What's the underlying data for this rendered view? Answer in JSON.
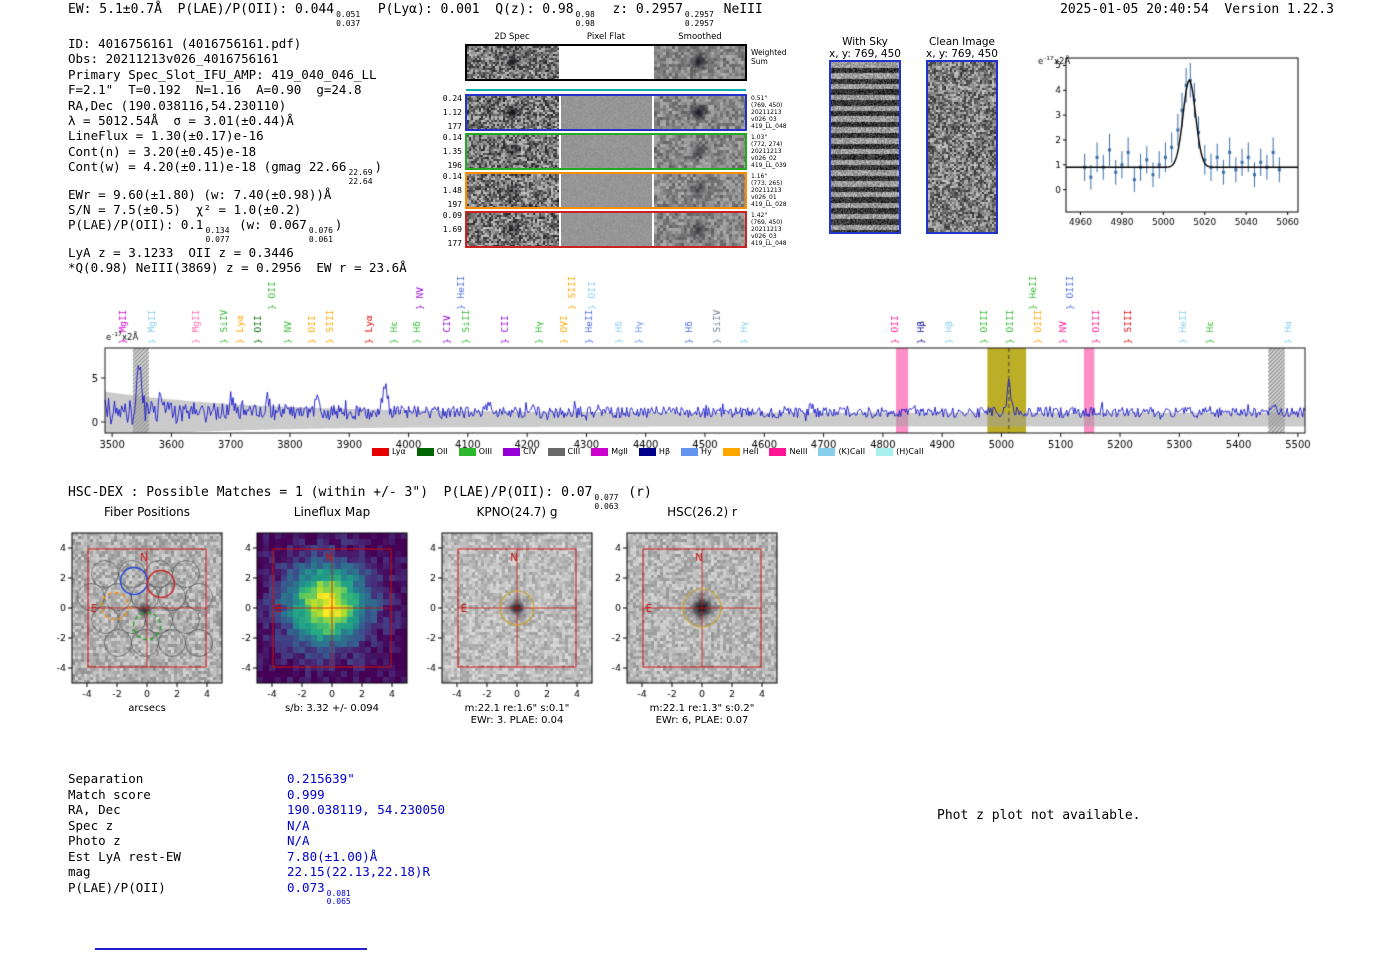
{
  "meta": {
    "generated": "2025-01-05 20:40:54  Version 1.22.3"
  },
  "header": {
    "segments": [
      {
        "t": "EW: 5.1±0.7Å  P(LAE)/P(OII): 0.044"
      },
      {
        "f": [
          "0.051",
          "0.037"
        ]
      },
      {
        "t": "  P(Lyα): 0.001  Q(z): 0.98"
      },
      {
        "f": [
          "0.98",
          "0.98"
        ]
      },
      {
        "t": "  z: 0.2957"
      },
      {
        "f": [
          "0.2957",
          "0.2957"
        ]
      },
      {
        "t": " NeIII"
      }
    ]
  },
  "info_lines": [
    [
      {
        "t": "ID: 4016756161 (4016756161.pdf)"
      }
    ],
    [
      {
        "t": "Obs: 20211213v026_4016756161"
      }
    ],
    [
      {
        "t": "Primary Spec_Slot_IFU_AMP: 419_040_046_LL"
      }
    ],
    [
      {
        "t": "F=2.1\"  T=0.192  N=1.16  A=0.90  g=24.8"
      }
    ],
    [
      {
        "t": "RA,Dec (190.038116,54.230110)"
      }
    ],
    [
      {
        "t": "λ = 5012.54Å  σ = 3.01(±0.44)Å"
      }
    ],
    [
      {
        "t": "LineFlux = 1.30(±0.17)e-16"
      }
    ],
    [
      {
        "t": "Cont(n) = 3.20(±0.45)e-18"
      }
    ],
    [
      {
        "t": "Cont(w) = 4.20(±0.11)e-18 (gmag 22.66"
      },
      {
        "f": [
          "22.69",
          "22.64"
        ]
      },
      {
        "t": ")"
      }
    ],
    [
      {
        "t": "EWr = 9.60(±1.80) (w: 7.40(±0.98))Å"
      }
    ],
    [
      {
        "t": "S/N = 7.5(±0.5)  χ² = 1.0(±0.2)"
      }
    ],
    [
      {
        "t": "P(LAE)/P(OII): 0.1"
      },
      {
        "f": [
          "0.134",
          "0.077"
        ]
      },
      {
        "t": " (w: 0.067"
      },
      {
        "f": [
          "0.076",
          "0.061"
        ]
      },
      {
        "t": ")"
      }
    ],
    [
      {
        "t": "LyA z = 3.1233  OII z = 0.3446"
      }
    ],
    [
      {
        "t": "*Q(0.98) NeIII(3869) z = 0.2956  EW r = 23.6Å"
      }
    ]
  ],
  "spec2d": {
    "col_headers": [
      "2D Spec",
      "Pixel Flat",
      "Smoothed"
    ],
    "weighted_sum": [
      "Weighted",
      "Sum"
    ],
    "rows": [
      {
        "border": "#000000",
        "left": [],
        "right": []
      },
      {
        "border": "#2233cc",
        "left": [
          "0.24",
          "1.12",
          "177"
        ],
        "right": [
          "0.51\"",
          "(769, 450)",
          "20211213",
          "v026_03",
          "419_LL_048"
        ]
      },
      {
        "border": "#22aa22",
        "left": [
          "0.14",
          "1.35",
          "196"
        ],
        "right": [
          "1.03\"",
          "(772, 274)",
          "20211213",
          "v026_02",
          "419_LL_039"
        ]
      },
      {
        "border": "#ff8c00",
        "left": [
          "0.14",
          "1.48",
          "197"
        ],
        "right": [
          "1.16\"",
          "(773, 265)",
          "20211213",
          "v026_01",
          "419_LL_028"
        ]
      },
      {
        "border": "#cc2222",
        "left": [
          "0.09",
          "1.69",
          "177"
        ],
        "right": [
          "1.42\"",
          "(769, 450)",
          "20211213",
          "v026_03",
          "419_LL_048"
        ]
      }
    ]
  },
  "sky_panels": {
    "with_sky": {
      "title": "With Sky",
      "subtitle": "x, y: 769, 450"
    },
    "clean": {
      "title": "Clean Image",
      "subtitle": "x, y: 769, 450"
    }
  },
  "hsc_dex": {
    "segments": [
      {
        "t": "HSC-DEX : Possible Matches = 1 (within +/- 3\")  P(LAE)/P(OII): 0.07"
      },
      {
        "f": [
          "0.077",
          "0.063"
        ]
      },
      {
        "t": " (r)"
      }
    ]
  },
  "panels": {
    "ticks": [
      -4,
      -2,
      0,
      2,
      4
    ],
    "compass": {
      "north": "N",
      "east": "E"
    },
    "items": [
      {
        "key": "fiber",
        "title": "Fiber Positions",
        "caption1": "arcsecs",
        "caption2": ""
      },
      {
        "key": "lineflux",
        "title": "Lineflux Map",
        "caption1": "s/b: 3.32 +/- 0.094",
        "caption2": ""
      },
      {
        "key": "kpno",
        "title": "KPNO(24.7) g",
        "caption1": "m:22.1 re:1.6\" s:0.1\"",
        "caption2": "EWr: 3. PLAE: 0.04"
      },
      {
        "key": "hsc",
        "title": "HSC(26.2) r",
        "caption1": "m:22.1 re:1.3\" s:0.2\"",
        "caption2": "EWr: 6, PLAE: 0.07"
      }
    ]
  },
  "match_table": {
    "rows": [
      {
        "label": "Separation",
        "value": [
          {
            "t": "0.215639\""
          }
        ]
      },
      {
        "label": "Match score",
        "value": [
          {
            "t": "0.999"
          }
        ]
      },
      {
        "label": "RA, Dec",
        "value": [
          {
            "t": "190.038119, 54.230050"
          }
        ]
      },
      {
        "label": "Spec z",
        "value": [
          {
            "t": "N/A"
          }
        ]
      },
      {
        "label": "Photo z",
        "value": [
          {
            "t": "N/A"
          }
        ]
      },
      {
        "label": "Est LyA rest-EW",
        "value": [
          {
            "t": "7.80(±1.00)Å"
          }
        ]
      },
      {
        "label": "mag",
        "value": [
          {
            "t": "22.15(22.13,22.18)R"
          }
        ]
      },
      {
        "label": "P(LAE)/P(OII)",
        "value": [
          {
            "t": "0.073"
          },
          {
            "f": [
              "0.081",
              "0.065"
            ]
          }
        ]
      }
    ]
  },
  "phot_z_note": "Phot z plot not available.",
  "chart_data": [
    {
      "id": "emission_line_fit",
      "type": "scatter",
      "ylabel": "e-17x2Å",
      "xlim": [
        4953,
        5065
      ],
      "ylim": [
        -0.9,
        5.3
      ],
      "xticks": [
        4960,
        4980,
        5000,
        5020,
        5040,
        5060
      ],
      "yticks": [
        0,
        1,
        2,
        3,
        4,
        5
      ],
      "fit": {
        "type": "gaussian",
        "baseline": 0.9,
        "amplitude": 3.5,
        "center": 5012.54,
        "sigma": 3.01
      },
      "colors": {
        "points": "#3a6ea5",
        "fit": "#000000"
      },
      "points": [
        [
          4962,
          0.9,
          0.55
        ],
        [
          4965,
          0.5,
          0.5
        ],
        [
          4968,
          1.3,
          0.6
        ],
        [
          4971,
          0.9,
          0.5
        ],
        [
          4974,
          1.6,
          0.65
        ],
        [
          4977,
          0.7,
          0.5
        ],
        [
          4980,
          1.0,
          0.55
        ],
        [
          4983,
          1.5,
          0.6
        ],
        [
          4986,
          0.4,
          0.5
        ],
        [
          4989,
          0.9,
          0.55
        ],
        [
          4992,
          1.2,
          0.55
        ],
        [
          4995,
          0.6,
          0.5
        ],
        [
          4998,
          1.0,
          0.55
        ],
        [
          5001,
          1.3,
          0.6
        ],
        [
          5004,
          1.7,
          0.6
        ],
        [
          5007,
          2.4,
          0.65
        ],
        [
          5009,
          3.2,
          0.7
        ],
        [
          5011,
          4.2,
          0.7
        ],
        [
          5013,
          4.4,
          0.7
        ],
        [
          5015,
          3.6,
          0.7
        ],
        [
          5017,
          2.3,
          0.65
        ],
        [
          5020,
          1.2,
          0.6
        ],
        [
          5023,
          0.9,
          0.55
        ],
        [
          5026,
          1.3,
          0.55
        ],
        [
          5029,
          0.7,
          0.5
        ],
        [
          5032,
          1.5,
          0.6
        ],
        [
          5035,
          0.8,
          0.5
        ],
        [
          5038,
          1.1,
          0.55
        ],
        [
          5041,
          1.3,
          0.6
        ],
        [
          5044,
          0.6,
          0.5
        ],
        [
          5047,
          1.1,
          0.55
        ],
        [
          5050,
          0.9,
          0.5
        ],
        [
          5053,
          1.5,
          0.6
        ],
        [
          5056,
          0.8,
          0.5
        ]
      ]
    },
    {
      "id": "full_spectrum",
      "type": "line",
      "title": "",
      "xlabel": "",
      "ylabel": "e-17x2Å",
      "xlim": [
        3488,
        5512
      ],
      "ylim": [
        -1.25,
        8.4
      ],
      "xticks": [
        3500,
        3600,
        3700,
        3800,
        3900,
        4000,
        4100,
        4200,
        4300,
        4400,
        4500,
        4600,
        4700,
        4800,
        4900,
        5000,
        5100,
        5200,
        5300,
        5400,
        5500
      ],
      "yticks": [
        0,
        5
      ],
      "line_color": "#1818cc",
      "noise": {
        "seed": 20211213,
        "mean": 1.1,
        "amp": 0.6,
        "blue_boost": 1.9,
        "blue_scale": 260,
        "step": 2
      },
      "peaks": [
        {
          "x": 3545,
          "h": 6.3,
          "w": 4
        },
        {
          "x": 3582,
          "h": 1.7,
          "w": 3
        },
        {
          "x": 3700,
          "h": 1.9,
          "w": 3
        },
        {
          "x": 3762,
          "h": 1.6,
          "w": 3
        },
        {
          "x": 3845,
          "h": 1.4,
          "w": 3
        },
        {
          "x": 3960,
          "h": 3.0,
          "w": 4
        },
        {
          "x": 4135,
          "h": 1.3,
          "w": 3
        },
        {
          "x": 4320,
          "h": 0.9,
          "w": 3
        },
        {
          "x": 4680,
          "h": 0.8,
          "w": 3
        },
        {
          "x": 5012.5,
          "h": 3.3,
          "w": 3.2
        },
        {
          "x": 5460,
          "h": 1.2,
          "w": 4
        }
      ],
      "error_band": {
        "color": "rgba(160,160,160,0.55)",
        "top": 1.05,
        "bottom": -0.5,
        "blue_boost": 2.3,
        "blue_scale": 240
      },
      "detection_line": {
        "x": 5012.54,
        "style": "dashed",
        "color": "#444444"
      },
      "bands": [
        {
          "x0": 3535,
          "x1": 3562,
          "color": "#999999",
          "alpha": 0.5,
          "hatch": true
        },
        {
          "x0": 4822,
          "x1": 4843,
          "color": "#ff69b4",
          "alpha": 0.75,
          "hatch": false
        },
        {
          "x0": 4976,
          "x1": 5042,
          "color": "#b0a000",
          "alpha": 0.85,
          "hatch": false
        },
        {
          "x0": 5139,
          "x1": 5157,
          "color": "#ff69b4",
          "alpha": 0.75,
          "hatch": false
        },
        {
          "x0": 5450,
          "x1": 5478,
          "color": "#999999",
          "alpha": 0.5,
          "hatch": true
        }
      ],
      "emission_labels": [
        {
          "name": "MgII",
          "wl": 3519,
          "color": "#cc00cc",
          "tier": 0
        },
        {
          "name": "MgII",
          "wl": 3567,
          "color": "#87ceeb",
          "tier": 0
        },
        {
          "name": "MgII",
          "wl": 3641,
          "color": "#ff69b4",
          "tier": 0
        },
        {
          "name": "SiIV",
          "wl": 3689,
          "color": "#2eb82e",
          "tier": 0
        },
        {
          "name": "Lyα",
          "wl": 3716,
          "color": "#ffa500",
          "tier": 0
        },
        {
          "name": "OII",
          "wl": 3746,
          "color": "#006400",
          "tier": 0
        },
        {
          "name": "OII",
          "wl": 3769,
          "color": "#2eb82e",
          "tier": 1
        },
        {
          "name": "NV",
          "wl": 3797,
          "color": "#2eb82e",
          "tier": 0
        },
        {
          "name": "OII",
          "wl": 3837,
          "color": "#ffa500",
          "tier": 0
        },
        {
          "name": "SIII",
          "wl": 3868,
          "color": "#ffa500",
          "tier": 0
        },
        {
          "name": "Lyα",
          "wl": 3934,
          "color": "#e50000",
          "tier": 0
        },
        {
          "name": "Hε",
          "wl": 3976,
          "color": "#2eb82e",
          "tier": 0
        },
        {
          "name": "Hδ",
          "wl": 4015,
          "color": "#2eb82e",
          "tier": 0
        },
        {
          "name": "NV",
          "wl": 4019,
          "color": "#9400d3",
          "tier": 1
        },
        {
          "name": "CIV",
          "wl": 4064,
          "color": "#9400d3",
          "tier": 0
        },
        {
          "name": "HeII",
          "wl": 4089,
          "color": "#4169e1",
          "tier": 1
        },
        {
          "name": "SiII",
          "wl": 4097,
          "color": "#2eb82e",
          "tier": 0
        },
        {
          "name": "CII",
          "wl": 4162,
          "color": "#9400d3",
          "tier": 0
        },
        {
          "name": "Hγ",
          "wl": 4220,
          "color": "#2eb82e",
          "tier": 0
        },
        {
          "name": "OVI",
          "wl": 4263,
          "color": "#ffa500",
          "tier": 0
        },
        {
          "name": "SIII",
          "wl": 4275,
          "color": "#ffa500",
          "tier": 1
        },
        {
          "name": "HeII",
          "wl": 4305,
          "color": "#4169e1",
          "tier": 0
        },
        {
          "name": "OII",
          "wl": 4309,
          "color": "#87ceeb",
          "tier": 1
        },
        {
          "name": "Hδ",
          "wl": 4355,
          "color": "#87ceeb",
          "tier": 0
        },
        {
          "name": "Hγ",
          "wl": 4389,
          "color": "#6495ed",
          "tier": 0
        },
        {
          "name": "Hδ",
          "wl": 4473,
          "color": "#4169e1",
          "tier": 0
        },
        {
          "name": "SiIV",
          "wl": 4520,
          "color": "#708090",
          "tier": 0
        },
        {
          "name": "Hγ",
          "wl": 4566,
          "color": "#87ceeb",
          "tier": 0
        },
        {
          "name": "OII",
          "wl": 4821,
          "color": "#ff1493",
          "tier": 0
        },
        {
          "name": "Hβ",
          "wl": 4864,
          "color": "#00008b",
          "tier": 0
        },
        {
          "name": "Hβ",
          "wl": 4911,
          "color": "#87ceeb",
          "tier": 0
        },
        {
          "name": "OIII",
          "wl": 4970,
          "color": "#2eb82e",
          "tier": 0
        },
        {
          "name": "OIII",
          "wl": 5015,
          "color": "#2eb82e",
          "tier": 0
        },
        {
          "name": "HeII",
          "wl": 5054,
          "color": "#2eb82e",
          "tier": 1
        },
        {
          "name": "OIII",
          "wl": 5062,
          "color": "#ffa500",
          "tier": 0
        },
        {
          "name": "NV",
          "wl": 5104,
          "color": "#ff1493",
          "tier": 0
        },
        {
          "name": "OIII",
          "wl": 5116,
          "color": "#4169e1",
          "tier": 1
        },
        {
          "name": "OIII",
          "wl": 5160,
          "color": "#ff1493",
          "tier": 0
        },
        {
          "name": "SIII",
          "wl": 5214,
          "color": "#e50000",
          "tier": 0
        },
        {
          "name": "HeII",
          "wl": 5306,
          "color": "#87ceeb",
          "tier": 0
        },
        {
          "name": "Hε",
          "wl": 5352,
          "color": "#2eb82e",
          "tier": 0
        },
        {
          "name": "Hα",
          "wl": 5483,
          "color": "#87ceeb",
          "tier": 0
        }
      ],
      "legend": [
        {
          "label": "Lyα",
          "color": "#e50000"
        },
        {
          "label": "OII",
          "color": "#006400"
        },
        {
          "label": "OIII",
          "color": "#2eb82e"
        },
        {
          "label": "CIV",
          "color": "#9400d3"
        },
        {
          "label": "CIII",
          "color": "#696969"
        },
        {
          "label": "MgII",
          "color": "#cc00cc"
        },
        {
          "label": "Hβ",
          "color": "#00008b"
        },
        {
          "label": "Hy",
          "color": "#6495ed"
        },
        {
          "label": "HeII",
          "color": "#ffa500"
        },
        {
          "label": "NeIII",
          "color": "#ff1493"
        },
        {
          "label": "(K)CaII",
          "color": "#87ceeb"
        },
        {
          "label": "(H)CaII",
          "color": "#aaf0ee"
        }
      ]
    }
  ]
}
